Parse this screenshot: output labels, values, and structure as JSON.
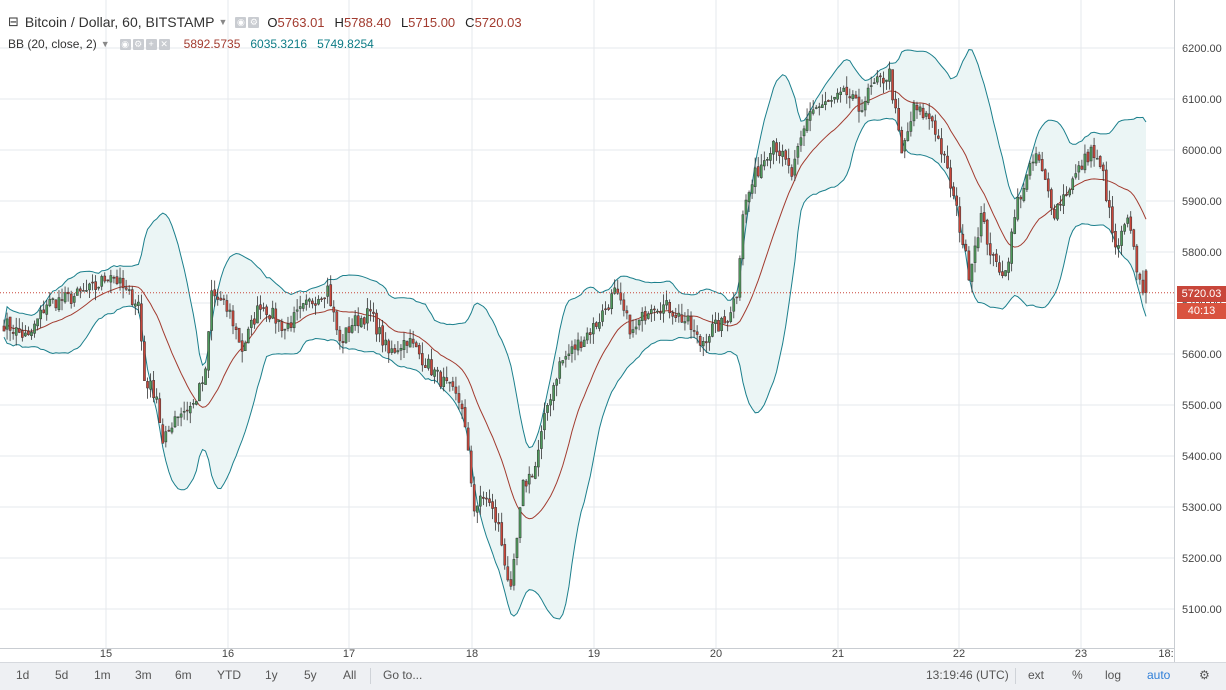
{
  "header": {
    "symbol": "Bitcoin / Dollar, 60, BITSTAMP",
    "ohlc": [
      {
        "label": "O",
        "value": "5763.01"
      },
      {
        "label": "H",
        "value": "5788.40"
      },
      {
        "label": "L",
        "value": "5715.00"
      },
      {
        "label": "C",
        "value": "5720.03"
      }
    ]
  },
  "indicator": {
    "name": "BB (20, close, 2)",
    "values": [
      {
        "value": "5892.5735",
        "color": "#a23b2f"
      },
      {
        "value": "6035.3216",
        "color": "#0e7c86"
      },
      {
        "value": "5749.8254",
        "color": "#0e7c86"
      }
    ]
  },
  "price_axis": {
    "labels": [
      "6200.00",
      "6100.00",
      "6000.00",
      "5900.00",
      "5800.00",
      "5700.00",
      "5600.00",
      "5500.00",
      "5400.00",
      "5300.00",
      "5200.00",
      "5100.00"
    ],
    "current_price": "5720.03",
    "countdown": "40:13"
  },
  "time_axis": {
    "labels": [
      "15",
      "16",
      "17",
      "18",
      "19",
      "20",
      "21",
      "22",
      "23",
      "18:"
    ]
  },
  "bottom_bar": {
    "ranges": [
      "1d",
      "5d",
      "1m",
      "3m",
      "6m",
      "YTD",
      "1y",
      "5y",
      "All"
    ],
    "goto": "Go to...",
    "clock": "13:19:46 (UTC)",
    "ext": "ext",
    "percent": "%",
    "log": "log",
    "auto": "auto"
  },
  "colors": {
    "up": "#4f9a5c",
    "down": "#c8463a",
    "band": "#1b7f8c",
    "basis": "#a23b2f",
    "fill": "#ebf5f5",
    "grid": "#e6e9ec",
    "accent": "#2f7fd8"
  },
  "chart_data": {
    "type": "candlestick",
    "price_range": [
      5050,
      6250
    ],
    "waypoints_close": [
      [
        0,
        5660
      ],
      [
        8,
        5630
      ],
      [
        14,
        5700
      ],
      [
        22,
        5710
      ],
      [
        30,
        5730
      ],
      [
        35,
        5760
      ],
      [
        40,
        5720
      ],
      [
        44,
        5700
      ],
      [
        46,
        5550
      ],
      [
        50,
        5520
      ],
      [
        52,
        5420
      ],
      [
        56,
        5480
      ],
      [
        62,
        5500
      ],
      [
        66,
        5560
      ],
      [
        68,
        5720
      ],
      [
        74,
        5680
      ],
      [
        78,
        5610
      ],
      [
        84,
        5700
      ],
      [
        92,
        5650
      ],
      [
        100,
        5700
      ],
      [
        106,
        5730
      ],
      [
        110,
        5620
      ],
      [
        114,
        5660
      ],
      [
        120,
        5680
      ],
      [
        126,
        5600
      ],
      [
        132,
        5630
      ],
      [
        140,
        5570
      ],
      [
        146,
        5530
      ],
      [
        150,
        5500
      ],
      [
        154,
        5300
      ],
      [
        158,
        5320
      ],
      [
        162,
        5260
      ],
      [
        166,
        5130
      ],
      [
        170,
        5340
      ],
      [
        174,
        5380
      ],
      [
        178,
        5500
      ],
      [
        182,
        5580
      ],
      [
        188,
        5620
      ],
      [
        194,
        5660
      ],
      [
        200,
        5720
      ],
      [
        206,
        5640
      ],
      [
        212,
        5700
      ],
      [
        218,
        5690
      ],
      [
        224,
        5660
      ],
      [
        228,
        5620
      ],
      [
        232,
        5650
      ],
      [
        236,
        5660
      ],
      [
        240,
        5720
      ],
      [
        242,
        5880
      ],
      [
        246,
        5950
      ],
      [
        252,
        6020
      ],
      [
        258,
        5950
      ],
      [
        264,
        6080
      ],
      [
        270,
        6090
      ],
      [
        276,
        6110
      ],
      [
        280,
        6080
      ],
      [
        284,
        6120
      ],
      [
        290,
        6150
      ],
      [
        294,
        5990
      ],
      [
        298,
        6080
      ],
      [
        304,
        6060
      ],
      [
        308,
        5980
      ],
      [
        312,
        5880
      ],
      [
        316,
        5760
      ],
      [
        320,
        5870
      ],
      [
        324,
        5780
      ],
      [
        328,
        5760
      ],
      [
        332,
        5900
      ],
      [
        338,
        5990
      ],
      [
        344,
        5880
      ],
      [
        350,
        5940
      ],
      [
        356,
        6000
      ],
      [
        360,
        5950
      ],
      [
        364,
        5800
      ],
      [
        368,
        5860
      ],
      [
        372,
        5740
      ],
      [
        374,
        5720
      ]
    ]
  }
}
